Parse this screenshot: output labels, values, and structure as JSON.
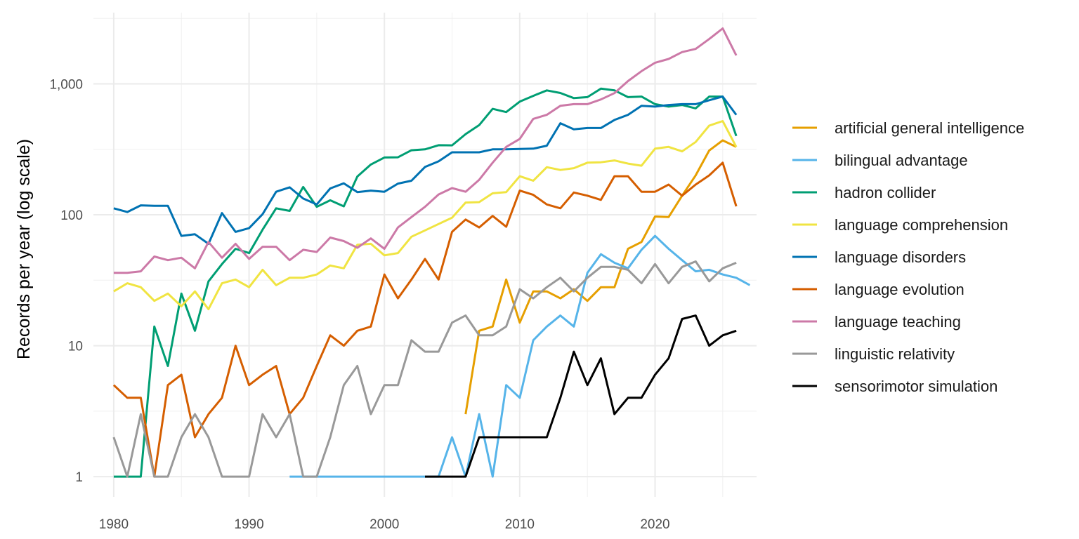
{
  "chart_data": {
    "type": "line",
    "title": "",
    "xlabel": "",
    "ylabel": "Records per year (log scale)",
    "yscale": "log",
    "xlim": [
      1978.5,
      2027.5
    ],
    "ylim": [
      0.7,
      3500
    ],
    "grid": true,
    "legend_position": "right",
    "x_ticks": [
      1980,
      1990,
      2000,
      2010,
      2020
    ],
    "y_ticks": [
      1,
      10,
      100,
      1000
    ],
    "y_tick_labels": [
      "1",
      "10",
      "100",
      "1,000"
    ],
    "series": [
      {
        "name": "artificial general intelligence",
        "color": "#E69F00",
        "x_start": 2006,
        "values": [
          3,
          13,
          14,
          32,
          15,
          26,
          26,
          23,
          27,
          22,
          28,
          28,
          55,
          62,
          97,
          96,
          140,
          200,
          310,
          370,
          330
        ]
      },
      {
        "name": "bilingual advantage",
        "color": "#56B4E9",
        "x_start": 1993,
        "values": [
          1,
          1,
          1,
          1,
          1,
          1,
          1,
          1,
          1,
          1,
          1,
          1,
          2,
          1,
          3,
          1,
          5,
          4,
          11,
          14,
          17,
          14,
          36,
          50,
          43,
          39,
          54,
          69,
          55,
          45,
          37,
          38,
          35,
          33,
          29
        ]
      },
      {
        "name": "hadron collider",
        "color": "#009E73",
        "x_start": 1980,
        "values": [
          1,
          1,
          1,
          14,
          7,
          25,
          13,
          31,
          42,
          55,
          51,
          77,
          112,
          107,
          163,
          115,
          129,
          116,
          196,
          242,
          274,
          275,
          311,
          316,
          340,
          339,
          413,
          484,
          644,
          609,
          732,
          810,
          891,
          852,
          778,
          792,
          919,
          893,
          792,
          800,
          700,
          670,
          690,
          650,
          800,
          800,
          400
        ]
      },
      {
        "name": "language comprehension",
        "color": "#F0E442",
        "x_start": 1980,
        "values": [
          26,
          30,
          28,
          22,
          25,
          20,
          26,
          19,
          30,
          32,
          28,
          38,
          29,
          33,
          33,
          35,
          41,
          39,
          59,
          60,
          49,
          51,
          68,
          76,
          85,
          95,
          124,
          125,
          146,
          149,
          197,
          182,
          231,
          220,
          227,
          250,
          252,
          260,
          246,
          237,
          320,
          330,
          305,
          360,
          480,
          520,
          330
        ]
      },
      {
        "name": "language disorders",
        "color": "#0072B2",
        "x_start": 1980,
        "values": [
          112,
          105,
          118,
          117,
          117,
          69,
          71,
          60,
          103,
          74,
          79,
          101,
          150,
          162,
          133,
          120,
          159,
          174,
          149,
          153,
          150,
          173,
          182,
          232,
          256,
          300,
          300,
          300,
          316,
          316,
          318,
          320,
          337,
          500,
          450,
          460,
          460,
          530,
          580,
          680,
          670,
          690,
          700,
          700,
          750,
          800,
          580
        ]
      },
      {
        "name": "language evolution",
        "color": "#D55E00",
        "x_start": 1980,
        "values": [
          5,
          4,
          4,
          1,
          5,
          6,
          2,
          3,
          4,
          10,
          5,
          6,
          7,
          3,
          4,
          7,
          12,
          10,
          13,
          14,
          35,
          23,
          32,
          46,
          32,
          74,
          92,
          80,
          98,
          81,
          153,
          142,
          120,
          112,
          148,
          140,
          130,
          197,
          197,
          150,
          150,
          170,
          140,
          170,
          200,
          250,
          116
        ]
      },
      {
        "name": "language teaching",
        "color": "#CC79A7",
        "x_start": 1980,
        "values": [
          36,
          36,
          37,
          48,
          45,
          47,
          39,
          62,
          47,
          60,
          46,
          57,
          57,
          45,
          54,
          52,
          67,
          63,
          56,
          66,
          55,
          80,
          96,
          115,
          143,
          160,
          150,
          185,
          250,
          330,
          380,
          540,
          580,
          680,
          700,
          700,
          760,
          850,
          1050,
          1250,
          1450,
          1550,
          1750,
          1850,
          2200,
          2650,
          1650
        ]
      },
      {
        "name": "linguistic relativity",
        "color": "#999999",
        "x_start": 1980,
        "values": [
          2,
          1,
          3,
          1,
          1,
          2,
          3,
          2,
          1,
          1,
          1,
          3,
          2,
          3,
          1,
          1,
          2,
          5,
          7,
          3,
          5,
          5,
          11,
          9,
          9,
          15,
          17,
          12,
          12,
          14,
          27,
          23,
          28,
          33,
          26,
          33,
          40,
          40,
          38,
          30,
          42,
          30,
          40,
          44,
          31,
          39,
          43
        ]
      },
      {
        "name": "sensorimotor simulation",
        "color": "#000000",
        "x_start": 2003,
        "values": [
          1,
          1,
          1,
          1,
          2,
          2,
          2,
          2,
          2,
          2,
          4,
          9,
          5,
          8,
          3,
          4,
          4,
          6,
          8,
          16,
          17,
          10,
          12,
          13
        ]
      }
    ]
  }
}
